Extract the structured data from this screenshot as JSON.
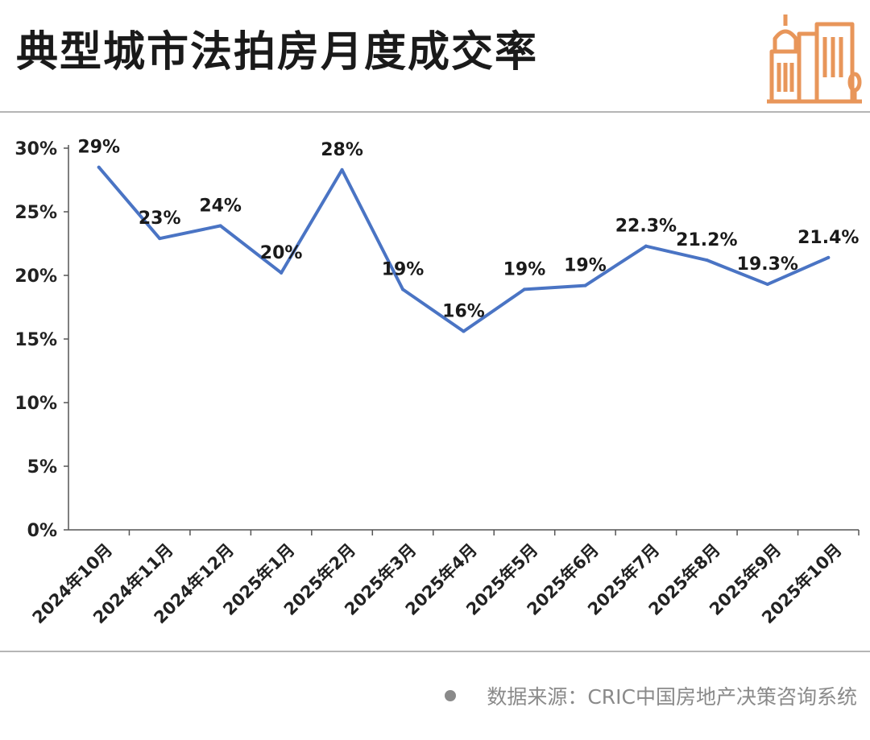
{
  "header": {
    "title": "典型城市法拍房月度成交率"
  },
  "footer": {
    "source": "数据来源：CRIC中国房地产决策咨询系统"
  },
  "logo_icon": "city-buildings-icon",
  "colors": {
    "line": "#4a74c4",
    "logo": "#e8965a",
    "axis": "#555555",
    "rule": "#b5b5b5"
  },
  "chart_data": {
    "type": "line",
    "title": "典型城市法拍房月度成交率",
    "xlabel": "",
    "ylabel": "",
    "ylim": [
      0,
      30
    ],
    "yticks": [
      "0%",
      "5%",
      "10%",
      "15%",
      "20%",
      "25%",
      "30%"
    ],
    "grid": false,
    "categories": [
      "2024年10月",
      "2024年11月",
      "2024年12月",
      "2025年1月",
      "2025年2月",
      "2025年3月",
      "2025年4月",
      "2025年5月",
      "2025年6月",
      "2025年7月",
      "2025年8月",
      "2025年9月",
      "2025年10月"
    ],
    "values": [
      28.5,
      22.9,
      23.9,
      20.2,
      28.3,
      18.9,
      15.6,
      18.9,
      19.2,
      22.3,
      21.2,
      19.3,
      21.4
    ],
    "data_labels": [
      "29%",
      "23%",
      "24%",
      "20%",
      "28%",
      "19%",
      "16%",
      "19%",
      "19%",
      "22.3%",
      "21.2%",
      "19.3%",
      "21.4%"
    ]
  }
}
